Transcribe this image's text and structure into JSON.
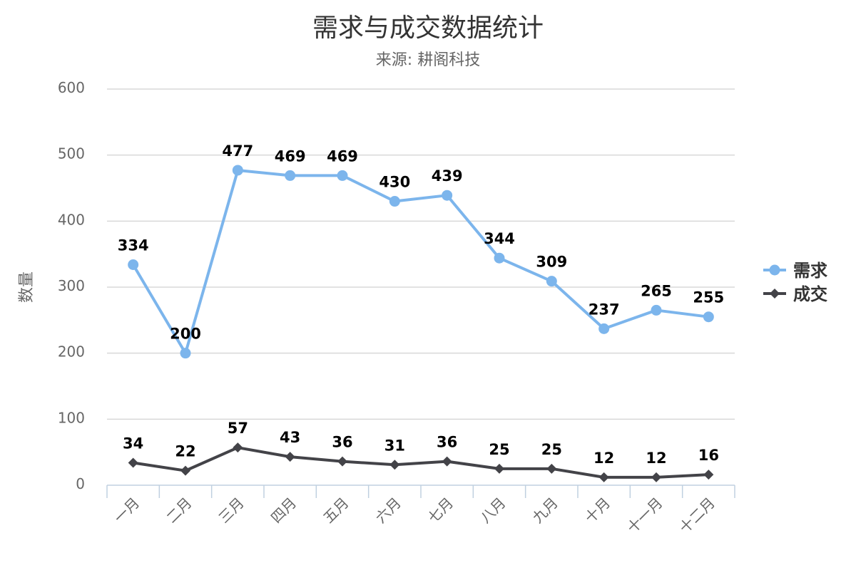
{
  "chart_data": {
    "type": "line",
    "title": "需求与成交数据统计",
    "subtitle": "来源: 耕阁科技",
    "ylabel": "数量",
    "xlabel": "",
    "ylim": [
      0,
      600
    ],
    "yticks": [
      0,
      100,
      200,
      300,
      400,
      500,
      600
    ],
    "grid": true,
    "legend_position": "right",
    "categories": [
      "一月",
      "二月",
      "三月",
      "四月",
      "五月",
      "六月",
      "七月",
      "八月",
      "九月",
      "十月",
      "十一月",
      "十二月"
    ],
    "series": [
      {
        "name": "需求",
        "marker": "circle",
        "color": "#7cb5ec",
        "values": [
          334,
          200,
          477,
          469,
          469,
          430,
          439,
          344,
          309,
          237,
          265,
          255
        ]
      },
      {
        "name": "成交",
        "marker": "diamond",
        "color": "#434348",
        "values": [
          34,
          22,
          57,
          43,
          36,
          31,
          36,
          25,
          25,
          12,
          12,
          16
        ]
      }
    ]
  }
}
